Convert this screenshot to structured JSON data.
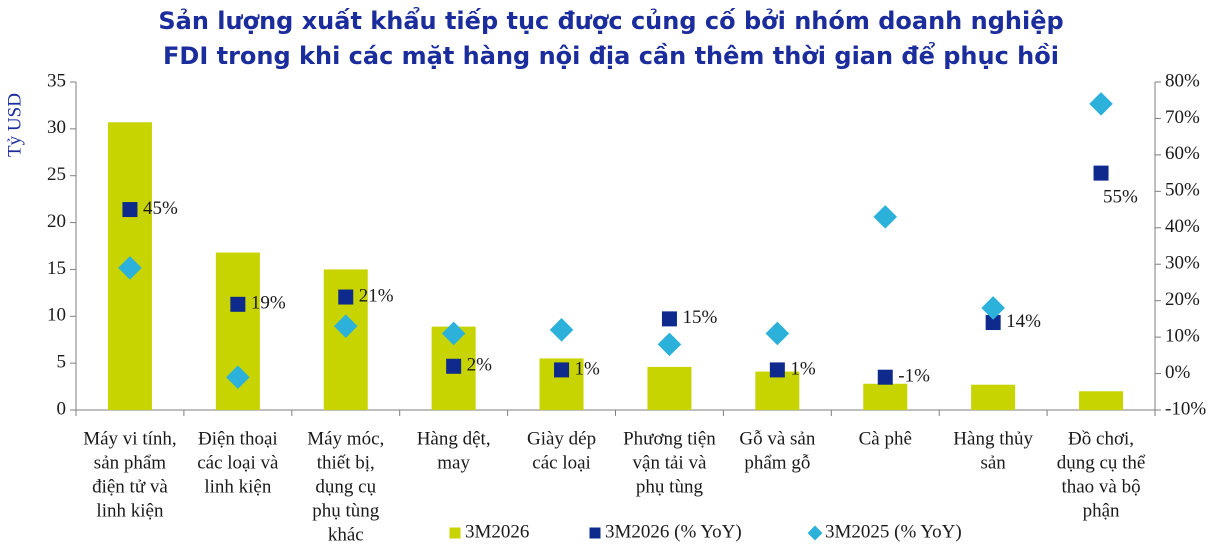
{
  "chart_data": {
    "type": "bar-scatter",
    "title": [
      "Sản lượng xuất khẩu tiếp tục được củng cố bởi nhóm doanh nghiệp",
      "FDI trong khi các mặt hàng nội địa cần thêm thời gian để phục hồi"
    ],
    "y_label": "Tỷ USD",
    "categories": [
      [
        "Máy vi tính,",
        "sản phẩm",
        "điện tử và",
        "linh kiện"
      ],
      [
        "Điện thoại",
        "các loại và",
        "linh kiện"
      ],
      [
        "Máy móc,",
        "thiết bị,",
        "dụng cụ",
        "phụ tùng",
        "khác"
      ],
      [
        "Hàng dệt,",
        "may"
      ],
      [
        "Giày dép",
        "các loại"
      ],
      [
        "Phương tiện",
        "vận tải và",
        "phụ tùng"
      ],
      [
        "Gỗ và sản",
        "phẩm gỗ"
      ],
      [
        "Cà phê"
      ],
      [
        "Hàng thủy",
        "sản"
      ],
      [
        "Đồ chơi,",
        "dụng cụ thể",
        "thao và bộ",
        "phận"
      ]
    ],
    "series": [
      {
        "name": "3M2026",
        "color": "#c8d400",
        "marker": "bar",
        "axis": "y",
        "values": [
          30.7,
          16.8,
          15.0,
          8.9,
          5.5,
          4.6,
          4.1,
          2.8,
          2.7,
          2.0
        ]
      },
      {
        "name": "3M2026 (% YoY)",
        "color": "#0d2a8c",
        "marker": "square",
        "axis": "y2",
        "values": [
          45,
          19,
          21,
          2,
          1,
          15,
          1,
          -1,
          14,
          55
        ],
        "value_labels": [
          "45%",
          "19%",
          "21%",
          "2%",
          "1%",
          "15%",
          "1%",
          "-1%",
          "14%",
          "55%"
        ]
      },
      {
        "name": "3M2025 (% YoY)",
        "color": "#2cb2da",
        "marker": "diamond",
        "axis": "y2",
        "values": [
          29,
          -1,
          13,
          11,
          12,
          8,
          11,
          43,
          18,
          74
        ]
      }
    ],
    "ylim": [
      0,
      35
    ],
    "yticks": [
      0,
      5,
      10,
      15,
      20,
      25,
      30,
      35
    ],
    "y2lim": [
      -10,
      80
    ],
    "y2ticks": [
      {
        "value": -10,
        "label": "-10%"
      },
      {
        "value": 0,
        "label": "0%"
      },
      {
        "value": 10,
        "label": "10%"
      },
      {
        "value": 20,
        "label": "20%"
      },
      {
        "value": 30,
        "label": "30%"
      },
      {
        "value": 40,
        "label": "40%"
      },
      {
        "value": 50,
        "label": "50%"
      },
      {
        "value": 60,
        "label": "60%"
      },
      {
        "value": 70,
        "label": "70%"
      },
      {
        "value": 80,
        "label": "80%"
      }
    ],
    "legend": "bottom"
  }
}
